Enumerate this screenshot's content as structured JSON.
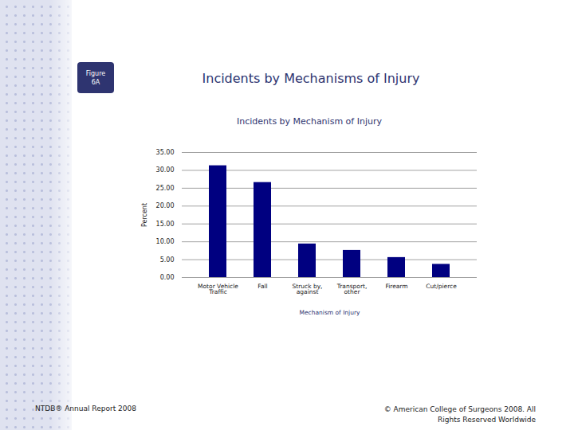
{
  "page": {
    "figure_label": "Figure 6A",
    "heading": "Incidents by Mechanisms of Injury",
    "footer_left": "NTDB® Annual Report 2008",
    "footer_right": "© American College of Surgeons 2008.  All Rights Reserved Worldwide"
  },
  "chart_data": {
    "type": "bar",
    "title": "Incidents by Mechanism of Injury",
    "x_label": "Mechanism of Injury",
    "y_label": "Percent",
    "categories": [
      "Motor Vehicle\nTraffic",
      "Fall",
      "Struck by,\nagainst",
      "Transport,\nother",
      "Firearm",
      "Cut/pierce"
    ],
    "values": [
      31.3,
      26.6,
      9.4,
      7.6,
      5.6,
      3.7
    ],
    "color": "#000080",
    "ylim": [
      0,
      35
    ],
    "yticks": [
      {
        "value": 0,
        "label": "0.00"
      },
      {
        "value": 5,
        "label": "5.00"
      },
      {
        "value": 10,
        "label": "10.00"
      },
      {
        "value": 15,
        "label": "15.00"
      },
      {
        "value": 20,
        "label": "20.00"
      },
      {
        "value": 25,
        "label": "25.00"
      },
      {
        "value": 30,
        "label": "30.00"
      },
      {
        "value": 35,
        "label": "35.00"
      }
    ],
    "grid": true
  }
}
